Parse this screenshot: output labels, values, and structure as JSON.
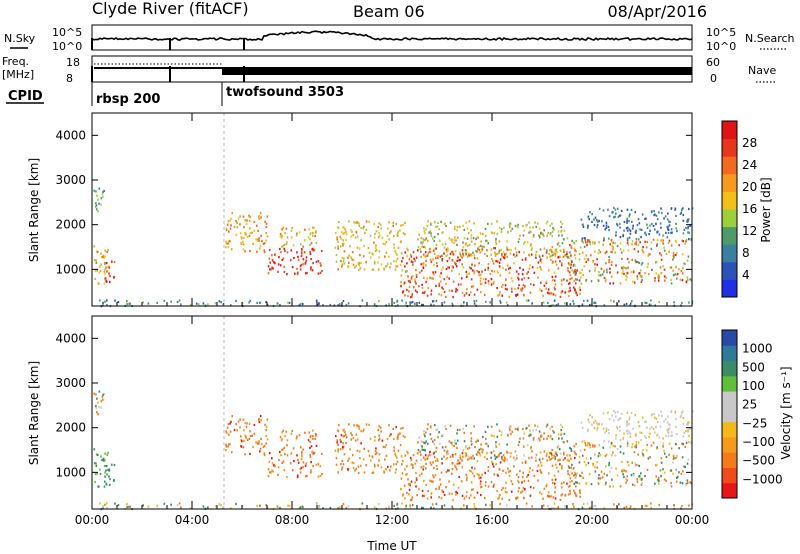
{
  "header": {
    "title": "Clyde River (fitACF)",
    "beam": "Beam 06",
    "date": "08/Apr/2016"
  },
  "top_panels": {
    "nsky_label": "N.Sky",
    "nsearch_label": "N.Search",
    "freq_label_1": "Freq.",
    "freq_label_2": "[MHz]",
    "nave_label": "Nave",
    "cpid_label": "CPID",
    "noise_ticks": [
      "10^5",
      "10^0"
    ],
    "freq_ticks": [
      "18",
      "8"
    ],
    "nave_ticks": [
      "60",
      "0"
    ],
    "cpid_entries": [
      {
        "label": "rbsp 200",
        "start_hour": 0
      },
      {
        "label": "twofsound 3503",
        "start_hour": 5.3
      }
    ]
  },
  "chart_data": [
    {
      "type": "heatmap",
      "title": "",
      "xlabel": "",
      "ylabel": "Slant Range [km]",
      "xlim": [
        0,
        24
      ],
      "ylim": [
        180,
        4500
      ],
      "yticks": [
        1000,
        2000,
        3000,
        4000
      ],
      "colorbar": {
        "label": "Power [dB]",
        "ticks": [
          "4",
          "8",
          "12",
          "16",
          "20",
          "24",
          "28"
        ],
        "colors": [
          "#1f2fe6",
          "#2a52b8",
          "#3b7fa0",
          "#4e9a6a",
          "#9ccf3a",
          "#f3c01a",
          "#f79a1c",
          "#f26a1c",
          "#e8361c",
          "#e01414"
        ]
      }
    },
    {
      "type": "heatmap",
      "title": "",
      "xlabel": "Time UT",
      "ylabel": "Slant Range [km]",
      "xlim": [
        0,
        24
      ],
      "ylim": [
        180,
        4500
      ],
      "yticks": [
        1000,
        2000,
        3000,
        4000
      ],
      "xticks": [
        "00:00",
        "04:00",
        "08:00",
        "12:00",
        "16:00",
        "20:00",
        "00:00"
      ],
      "colorbar": {
        "label": "Velocity [m s⁻¹]",
        "ticks": [
          "1000",
          "500",
          "100",
          "25",
          "−25",
          "−100",
          "−500",
          "−1000"
        ],
        "colors": [
          "#2a4aa8",
          "#2f7a9a",
          "#3c8a66",
          "#5fbf3a",
          "#c8c8c8",
          "#c8c8c8",
          "#f5b81a",
          "#f59a1a",
          "#f57a1a",
          "#f24a1a",
          "#e81616"
        ]
      }
    }
  ]
}
